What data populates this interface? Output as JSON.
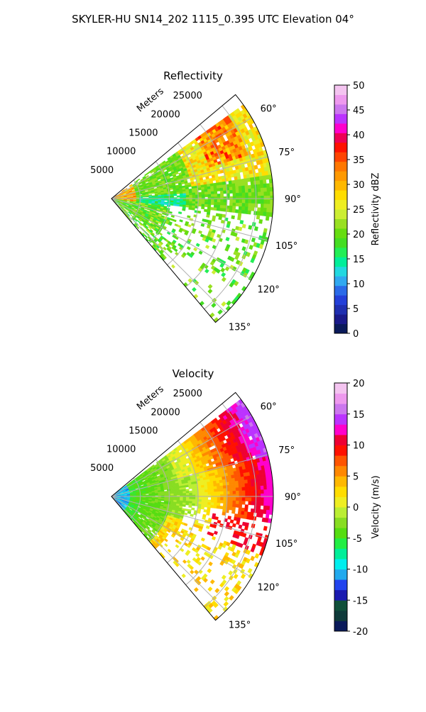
{
  "figure": {
    "suptitle": "SKYLER-HU  SN14_202  1115_0.395 UTC Elevation 04°"
  },
  "chart_data": [
    {
      "type": "heatmap",
      "title": "Reflectivity",
      "range_axis_label": "Meters",
      "range_ticks": [
        5000,
        10000,
        15000,
        20000,
        25000
      ],
      "range_tick_labels": [
        "5000",
        "10000",
        "15000",
        "20000",
        "25000"
      ],
      "azimuth_ticks": [
        60,
        75,
        90,
        105,
        120,
        135
      ],
      "azimuth_tick_labels": [
        "60°",
        "75°",
        "90°",
        "105°",
        "120°",
        "135°"
      ],
      "azimuth_range": [
        50,
        140
      ],
      "max_range": 28000,
      "grid": true,
      "colorbar": {
        "label": "Reflectivity dBZ",
        "range": [
          0,
          50
        ],
        "ticks": [
          0,
          5,
          10,
          15,
          20,
          25,
          30,
          35,
          40,
          45,
          50
        ],
        "tick_labels": [
          "0",
          "5",
          "10",
          "15",
          "20",
          "25",
          "30",
          "35",
          "40",
          "45",
          "50"
        ],
        "colors": [
          "#0a1a5a",
          "#1a1a8a",
          "#1f2fb0",
          "#233fd8",
          "#2a6ae8",
          "#30a8f0",
          "#22d8e0",
          "#00ee99",
          "#22ee55",
          "#44dd22",
          "#66dd11",
          "#99e022",
          "#ccee33",
          "#eeee22",
          "#ffdd00",
          "#ffb800",
          "#ff9900",
          "#ff7700",
          "#ff4400",
          "#ff1100",
          "#ee0055",
          "#ff00cc",
          "#bb33ff",
          "#cc77ee",
          "#ee99ee",
          "#f4c4f0"
        ]
      }
    },
    {
      "type": "heatmap",
      "title": "Velocity",
      "range_axis_label": "Meters",
      "range_ticks": [
        5000,
        10000,
        15000,
        20000,
        25000
      ],
      "range_tick_labels": [
        "5000",
        "10000",
        "15000",
        "20000",
        "25000"
      ],
      "azimuth_ticks": [
        60,
        75,
        90,
        105,
        120,
        135
      ],
      "azimuth_tick_labels": [
        "60°",
        "75°",
        "90°",
        "105°",
        "120°",
        "135°"
      ],
      "azimuth_range": [
        50,
        140
      ],
      "max_range": 28000,
      "grid": true,
      "colorbar": {
        "label": "Velocity (m/s)",
        "range": [
          -20,
          20
        ],
        "ticks": [
          -20,
          -15,
          -10,
          -5,
          0,
          5,
          10,
          15,
          20
        ],
        "tick_labels": [
          "-20",
          "-15",
          "-10",
          "-5",
          "0",
          "5",
          "10",
          "15",
          "20"
        ],
        "colors": [
          "#0a1a5a",
          "#0f3a3a",
          "#10503a",
          "#1a1ab0",
          "#2244ee",
          "#22aaee",
          "#00eeee",
          "#00ee99",
          "#22ee44",
          "#55dd11",
          "#88dd22",
          "#bbee33",
          "#eeee22",
          "#ffdd00",
          "#ffb800",
          "#ff8800",
          "#ff5500",
          "#ff1100",
          "#ee0033",
          "#ff00cc",
          "#bb33ff",
          "#cc77ee",
          "#ee99ee",
          "#f4c4f0"
        ]
      }
    }
  ]
}
